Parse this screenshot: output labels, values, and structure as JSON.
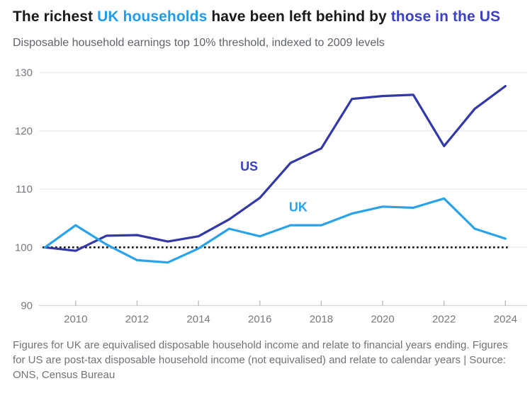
{
  "title": {
    "segments": [
      {
        "text": "The richest ",
        "color": "#1a1a1a"
      },
      {
        "text": "UK households",
        "color": "#219ce9"
      },
      {
        "text": " have been left behind by ",
        "color": "#1a1a1a"
      },
      {
        "text": "those in the US",
        "color": "#3a41c4"
      }
    ]
  },
  "subtitle": "Disposable household earnings top 10% threshold, indexed to 2009 levels",
  "footer": "Figures for UK are equivalised disposable household income and relate to financial years ending. Figures for US are post-tax disposable household income (not equivalised) and relate to calendar years | Source: ONS, Census Bureau",
  "chart_data": {
    "type": "line",
    "x": [
      2009,
      2010,
      2011,
      2012,
      2013,
      2014,
      2015,
      2016,
      2017,
      2018,
      2019,
      2020,
      2021,
      2022,
      2023,
      2024
    ],
    "series": [
      {
        "name": "US",
        "color": "#3238a8",
        "values": [
          100,
          99.4,
          102,
          102.1,
          101,
          101.9,
          104.8,
          108.5,
          114.5,
          117,
          125.5,
          126,
          126.2,
          117.4,
          123.8,
          127.7
        ]
      },
      {
        "name": "UK",
        "color": "#29a2ec",
        "values": [
          100,
          103.8,
          100.5,
          97.8,
          97.4,
          99.8,
          103.2,
          101.9,
          103.8,
          103.8,
          105.8,
          107,
          106.8,
          108.4,
          103.2,
          101.5
        ]
      }
    ],
    "annotations": [
      {
        "text": "US",
        "year": 2015.65,
        "value": 113.2,
        "color": "#3a41c4"
      },
      {
        "text": "UK",
        "year": 2017.25,
        "value": 106.2,
        "color": "#29a2ec"
      }
    ],
    "reference_line": {
      "value": 100,
      "style": "dotted",
      "color": "#141414"
    },
    "yticks": [
      90,
      100,
      110,
      120,
      130
    ],
    "xticks": [
      2010,
      2012,
      2014,
      2016,
      2018,
      2020,
      2022,
      2024
    ],
    "ylim": [
      90,
      130
    ],
    "xlim": [
      2009,
      2024
    ],
    "grid": "horizontal",
    "grid_color": "#e8e8eb",
    "axis_color": "#d4d5d8",
    "tick_color": "#b8babd",
    "legend_position": "inline-labels",
    "title": "The richest UK households have been left behind by those in the US",
    "xlabel": "",
    "ylabel": ""
  }
}
